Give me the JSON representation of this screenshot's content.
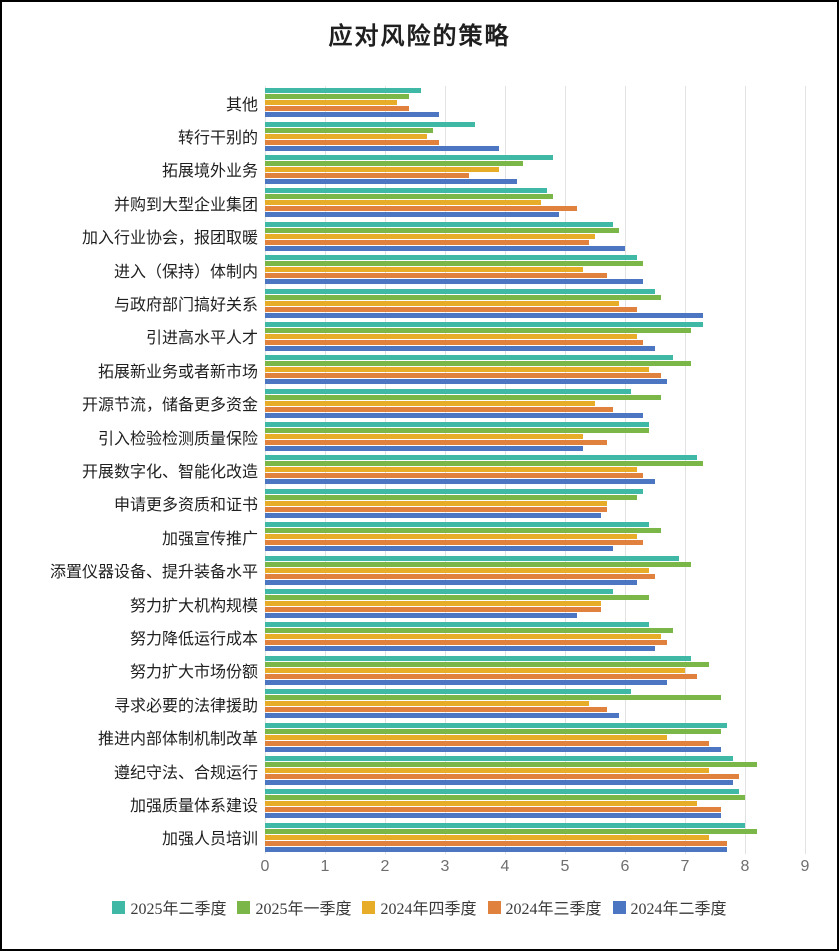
{
  "title": "应对风险的策略",
  "chart_data": {
    "type": "bar",
    "orientation": "horizontal",
    "title": "应对风险的策略",
    "xlim": [
      0,
      9
    ],
    "x_ticks": [
      0,
      1,
      2,
      3,
      4,
      5,
      6,
      7,
      8,
      9
    ],
    "grid": true,
    "legend_position": "bottom",
    "gridline_color": "#e2e2e2",
    "categories": [
      "其他",
      "转行干别的",
      "拓展境外业务",
      "并购到大型企业集团",
      "加入行业协会，报团取暖",
      "进入（保持）体制内",
      "与政府部门搞好关系",
      "引进高水平人才",
      "拓展新业务或者新市场",
      "开源节流，储备更多资金",
      "引入检验检测质量保险",
      "开展数字化、智能化改造",
      "申请更多资质和证书",
      "加强宣传推广",
      "添置仪器设备、提升装备水平",
      "努力扩大机构规模",
      "努力降低运行成本",
      "努力扩大市场份额",
      "寻求必要的法律援助",
      "推进内部体制机制改革",
      "遵纪守法、合规运行",
      "加强质量体系建设",
      "加强人员培训"
    ],
    "series": [
      {
        "name": "2025年二季度",
        "color": "#3fb8a6",
        "values": [
          2.6,
          3.5,
          4.8,
          4.7,
          5.8,
          6.2,
          6.5,
          7.3,
          6.8,
          6.1,
          6.4,
          7.2,
          6.3,
          6.4,
          6.9,
          5.8,
          6.4,
          7.1,
          6.1,
          7.7,
          7.8,
          7.9,
          8.0
        ]
      },
      {
        "name": "2025年一季度",
        "color": "#7ab648",
        "values": [
          2.4,
          2.8,
          4.3,
          4.8,
          5.9,
          6.3,
          6.6,
          7.1,
          7.1,
          6.6,
          6.4,
          7.3,
          6.2,
          6.6,
          7.1,
          6.4,
          6.8,
          7.4,
          7.6,
          7.6,
          8.2,
          8.0,
          8.2
        ]
      },
      {
        "name": "2024年四季度",
        "color": "#e8ad28",
        "values": [
          2.2,
          2.7,
          3.9,
          4.6,
          5.5,
          5.3,
          5.9,
          6.2,
          6.4,
          5.5,
          5.3,
          6.2,
          5.7,
          6.2,
          6.4,
          5.6,
          6.6,
          7.0,
          5.4,
          6.7,
          7.4,
          7.2,
          7.4
        ]
      },
      {
        "name": "2024年三季度",
        "color": "#e0813d",
        "values": [
          2.4,
          2.9,
          3.4,
          5.2,
          5.4,
          5.7,
          6.2,
          6.3,
          6.6,
          5.8,
          5.7,
          6.3,
          5.7,
          6.3,
          6.5,
          5.6,
          6.7,
          7.2,
          5.7,
          7.4,
          7.9,
          7.6,
          7.7
        ]
      },
      {
        "name": "2024年二季度",
        "color": "#4c76c2",
        "values": [
          2.9,
          3.9,
          4.2,
          4.9,
          6.0,
          6.3,
          7.3,
          6.5,
          6.7,
          6.3,
          5.3,
          6.5,
          5.6,
          5.8,
          6.2,
          5.2,
          6.5,
          6.7,
          5.9,
          7.6,
          7.8,
          7.6,
          7.7
        ]
      }
    ]
  }
}
